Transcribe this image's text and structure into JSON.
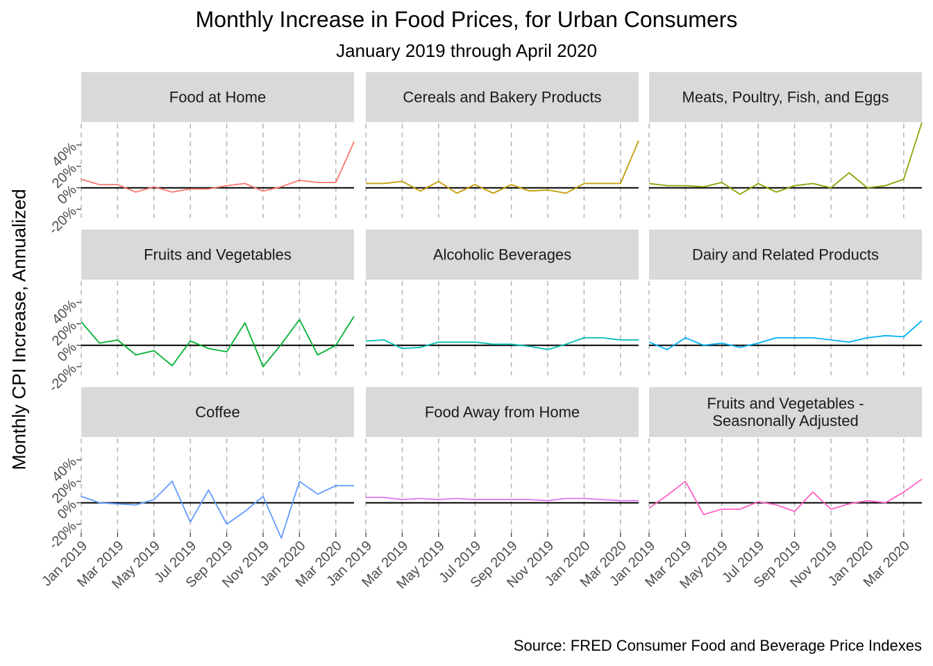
{
  "title": "Monthly Increase in Food Prices, for Urban Consumers",
  "subtitle": "January 2019 through April 2020",
  "caption": "Source: FRED Consumer Food and Beverage Price Indexes",
  "chart_data": {
    "type": "line",
    "ylabel": "Monthly CPI Increase, Annualized",
    "ylim": [
      -0.28,
      0.6
    ],
    "y_ticks": [
      -0.2,
      0,
      0.2,
      0.4
    ],
    "y_tick_labels": [
      "-20%",
      "0%",
      "20%",
      "40%"
    ],
    "x": [
      "2019-01",
      "2019-02",
      "2019-03",
      "2019-04",
      "2019-05",
      "2019-06",
      "2019-07",
      "2019-08",
      "2019-09",
      "2019-10",
      "2019-11",
      "2019-12",
      "2020-01",
      "2020-02",
      "2020-03",
      "2020-04"
    ],
    "x_ticks": [
      "2019-01",
      "2019-03",
      "2019-05",
      "2019-07",
      "2019-09",
      "2019-11",
      "2020-01",
      "2020-03"
    ],
    "x_tick_labels": [
      "Jan 2019",
      "Mar 2019",
      "May 2019",
      "Jul 2019",
      "Sep 2019",
      "Nov 2019",
      "Jan 2020",
      "Mar 2020"
    ],
    "grid": "vertical dashed at x ticks",
    "reference_line": 0,
    "facets": [
      {
        "name": "Food at Home",
        "color": "#F8766D",
        "values": [
          0.08,
          0.03,
          0.03,
          -0.04,
          0.01,
          -0.04,
          -0.01,
          -0.01,
          0.02,
          0.04,
          -0.03,
          0.01,
          0.07,
          0.05,
          0.05,
          0.43
        ]
      },
      {
        "name": "Cereals and Bakery Products",
        "color": "#C49A00",
        "values": [
          0.04,
          0.04,
          0.06,
          -0.03,
          0.06,
          -0.05,
          0.03,
          -0.05,
          0.03,
          -0.03,
          -0.02,
          -0.05,
          0.04,
          0.04,
          0.04,
          0.44
        ]
      },
      {
        "name": "Meats, Poultry, Fish, and Eggs",
        "color": "#8EA100",
        "values": [
          0.04,
          0.02,
          0.02,
          0.01,
          0.05,
          -0.06,
          0.04,
          -0.04,
          0.02,
          0.04,
          0.0,
          0.14,
          0.0,
          0.02,
          0.08,
          0.61
        ]
      },
      {
        "name": "Fruits and Vegetables",
        "color": "#00B02F",
        "values": [
          0.22,
          0.02,
          0.05,
          -0.09,
          -0.05,
          -0.19,
          0.04,
          -0.03,
          -0.06,
          0.21,
          -0.2,
          0.01,
          0.24,
          -0.09,
          0.0,
          0.27
        ]
      },
      {
        "name": "Alcoholic Beverages",
        "color": "#00BFB2",
        "values": [
          0.04,
          0.05,
          -0.03,
          -0.02,
          0.03,
          0.03,
          0.03,
          0.01,
          0.01,
          -0.01,
          -0.04,
          0.01,
          0.07,
          0.07,
          0.05,
          0.05
        ]
      },
      {
        "name": "Dairy and Related Products",
        "color": "#00B0F6",
        "values": [
          0.03,
          -0.04,
          0.07,
          0.0,
          0.02,
          -0.02,
          0.02,
          0.07,
          0.07,
          0.07,
          0.05,
          0.03,
          0.07,
          0.09,
          0.08,
          0.23
        ]
      },
      {
        "name": "Coffee",
        "color": "#619CFF",
        "values": [
          0.06,
          0.0,
          -0.01,
          -0.02,
          0.03,
          0.2,
          -0.18,
          0.12,
          -0.2,
          -0.08,
          0.06,
          -0.33,
          0.2,
          0.08,
          0.16,
          0.16
        ]
      },
      {
        "name": "Food Away from Home",
        "color": "#DB72FB",
        "values": [
          0.05,
          0.05,
          0.03,
          0.04,
          0.03,
          0.04,
          0.03,
          0.03,
          0.03,
          0.03,
          0.02,
          0.04,
          0.04,
          0.03,
          0.02,
          0.02
        ]
      },
      {
        "name": "Fruits and Vegetables -\nSeasnonally Adjusted",
        "color": "#FF61C3",
        "values": [
          -0.05,
          0.07,
          0.2,
          -0.11,
          -0.06,
          -0.06,
          0.01,
          -0.02,
          -0.08,
          0.1,
          -0.06,
          -0.01,
          0.02,
          0.0,
          0.1,
          0.22
        ]
      }
    ]
  }
}
